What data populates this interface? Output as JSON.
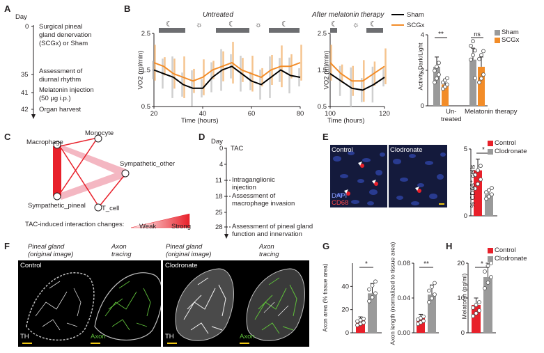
{
  "panels": {
    "A": "A",
    "B": "B",
    "C": "C",
    "D": "D",
    "E": "E",
    "F": "F",
    "G": "G",
    "H": "H"
  },
  "timeline_a": {
    "day_label": "Day",
    "events": [
      {
        "day": "0",
        "text": [
          "Surgical pineal",
          "gland denervation",
          "(SCGx) or Sham"
        ]
      },
      {
        "day": "35",
        "text": [
          "Assessment of",
          "diurnal rhythm"
        ]
      },
      {
        "day": "41",
        "text": [
          "Melatonin injection",
          "(50 μg i.p.)"
        ]
      },
      {
        "day": "42",
        "text": [
          "Organ harvest"
        ]
      }
    ]
  },
  "panel_b": {
    "title_untreated": "Untreated",
    "title_melatonin": "After melatonin therapy",
    "legend": [
      {
        "name": "Sham",
        "color": "#000000"
      },
      {
        "name": "SCGx",
        "color": "#f28c28"
      }
    ],
    "sun_symbol": "☼",
    "moon_symbol": "☾",
    "chart_data": [
      {
        "type": "line",
        "title": "Untreated",
        "xlabel": "Time (hours)",
        "ylabel": "VO2 (ml/min)",
        "xlim": [
          20,
          80
        ],
        "ylim": [
          0.5,
          2.5
        ],
        "xticks": [
          "20",
          "40",
          "60",
          "80"
        ],
        "yticks": [
          "0.5",
          "1.5",
          "2.5"
        ],
        "x": [
          20,
          24,
          28,
          32,
          36,
          40,
          44,
          48,
          52,
          56,
          60,
          64,
          68,
          72,
          76,
          80
        ],
        "series": [
          {
            "name": "Sham",
            "values": [
              1.5,
              1.4,
              1.3,
              1.1,
              1.0,
              1.0,
              1.3,
              1.5,
              1.6,
              1.4,
              1.2,
              1.1,
              1.3,
              1.5,
              1.35,
              1.3
            ]
          },
          {
            "name": "SCGx",
            "values": [
              1.7,
              1.6,
              1.4,
              1.3,
              1.2,
              1.3,
              1.5,
              1.6,
              1.7,
              1.5,
              1.4,
              1.3,
              1.5,
              1.6,
              1.6,
              1.7
            ]
          }
        ]
      },
      {
        "type": "line",
        "title": "After melatonin therapy",
        "xlabel": "Time (hours)",
        "ylabel": "VO2 (ml/min)",
        "xlim": [
          100,
          120
        ],
        "ylim": [
          0.5,
          2.5
        ],
        "xticks": [
          "100",
          "120"
        ],
        "yticks": [
          "0.5",
          "1.5",
          "2.5"
        ],
        "x": [
          100,
          104,
          108,
          112,
          116,
          120
        ],
        "series": [
          {
            "name": "Sham",
            "values": [
              1.4,
              1.2,
              1.0,
              0.95,
              1.1,
              1.3
            ]
          },
          {
            "name": "SCGx",
            "values": [
              1.7,
              1.4,
              1.2,
              1.2,
              1.4,
              1.6
            ]
          }
        ]
      },
      {
        "type": "bar",
        "ylabel": "Activity Dark/Light",
        "categories": [
          "Un-\ntreated",
          "Melatonin\ntherapy"
        ],
        "ylim": [
          0,
          4
        ],
        "yticks": [
          "0",
          "2",
          "4"
        ],
        "series": [
          {
            "name": "Sham",
            "values": [
              2.2,
              2.6
            ]
          },
          {
            "name": "SCGx",
            "values": [
              1.2,
              2.2
            ]
          }
        ],
        "significance": [
          "**",
          "ns"
        ]
      }
    ]
  },
  "panel_c": {
    "nodes": [
      "Macrophage",
      "Monocyte",
      "Sympathetic_other",
      "Sympathetic_pineal",
      "T_cell"
    ],
    "legend_label": "TAC-induced interaction changes:",
    "weak": "Weak",
    "strong": "Strong"
  },
  "timeline_d": {
    "day_label": "Day",
    "events": [
      {
        "day": "0",
        "text": [
          "TAC"
        ]
      },
      {
        "day": "4",
        "text": [
          ""
        ]
      },
      {
        "day": "11",
        "text": [
          "Intraganglionic",
          "injection"
        ]
      },
      {
        "day": "18",
        "text": [
          "Assessment of",
          "macrophage invasion"
        ]
      },
      {
        "day": "25",
        "text": [
          ""
        ]
      },
      {
        "day": "28",
        "text": [
          "Assessment of pineal gland",
          "function and innervation"
        ]
      }
    ]
  },
  "panel_e": {
    "image_labels": {
      "control": "Control",
      "clodronate": "Clodronate",
      "dapi": "DAPI",
      "cd68": "CD68"
    },
    "legend": [
      {
        "name": "Control",
        "color": "#e8202a"
      },
      {
        "name": "Clodronate",
        "color": "#9a9a9a"
      }
    ],
    "chart_data": {
      "type": "bar",
      "ylabel": "% CD68⁺ cells",
      "categories": [
        "Control",
        "Clodronate"
      ],
      "values": [
        3.4,
        1.6
      ],
      "ylim": [
        0,
        5
      ],
      "yticks": [
        "0",
        "5"
      ],
      "significance": "*"
    }
  },
  "panel_f": {
    "col_labels": [
      "Pineal gland",
      "(original image)",
      "Axon",
      "tracing"
    ],
    "control": "Control",
    "clodronate": "Clodronate",
    "th": "TH",
    "axon": "Axon"
  },
  "panel_g": {
    "chart_data": [
      {
        "type": "bar",
        "ylabel": "Axon area (% tissue area)",
        "categories": [
          "Control",
          "Clodronate"
        ],
        "values": [
          11,
          34
        ],
        "ylim": [
          0,
          60
        ],
        "yticks": [
          "0",
          "20",
          "40"
        ],
        "significance": "*"
      },
      {
        "type": "bar",
        "ylabel": "Axon length (normalized to tissue area)",
        "categories": [
          "Control",
          "Clodronate"
        ],
        "values": [
          0.017,
          0.044
        ],
        "ylim": [
          0,
          0.08
        ],
        "yticks": [
          "0.00",
          "0.04",
          "0.08"
        ],
        "significance": "**"
      }
    ]
  },
  "panel_h": {
    "legend": [
      {
        "name": "Control",
        "color": "#e8202a"
      },
      {
        "name": "Clodronate",
        "color": "#9a9a9a"
      }
    ],
    "chart_data": {
      "type": "bar",
      "ylabel": "Melatonin (pg/ml)",
      "categories": [
        "Control",
        "Clodronate"
      ],
      "values": [
        8,
        16
      ],
      "ylim": [
        0,
        20
      ],
      "yticks": [
        "0",
        "10",
        "20"
      ],
      "significance": "*"
    }
  }
}
